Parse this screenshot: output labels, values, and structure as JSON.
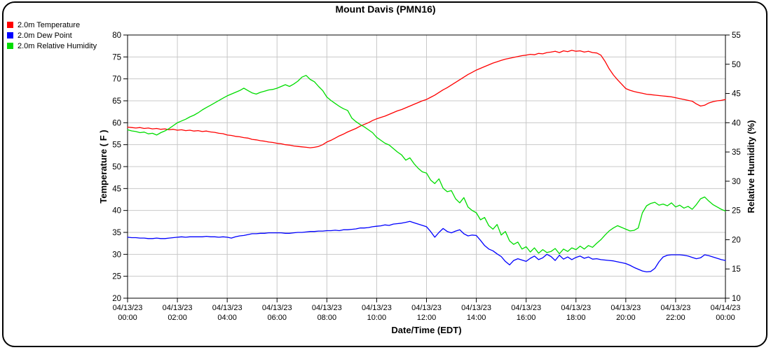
{
  "title": "Mount Davis (PMN16)",
  "legend": {
    "position": "top-left",
    "items": [
      "2.0m Temperature",
      "2.0m Dew Point",
      "2.0m Relative Humidity"
    ]
  },
  "colors": {
    "background": "#ffffff",
    "frame_border": "#000000",
    "axis": "#000000",
    "grid": "#c8c8c8"
  },
  "chart_data": {
    "type": "line",
    "title": "Mount Davis (PMN16)",
    "grid": true,
    "grid_color": "#c8c8c8",
    "x_axis": {
      "label": "Date/Time (EDT)",
      "start_hour": 0,
      "end_hour": 24,
      "tick_interval_hours": 2,
      "tick_labels": [
        {
          "date": "04/13/23",
          "time": "00:00"
        },
        {
          "date": "04/13/23",
          "time": "02:00"
        },
        {
          "date": "04/13/23",
          "time": "04:00"
        },
        {
          "date": "04/13/23",
          "time": "06:00"
        },
        {
          "date": "04/13/23",
          "time": "08:00"
        },
        {
          "date": "04/13/23",
          "time": "10:00"
        },
        {
          "date": "04/13/23",
          "time": "12:00"
        },
        {
          "date": "04/13/23",
          "time": "14:00"
        },
        {
          "date": "04/13/23",
          "time": "16:00"
        },
        {
          "date": "04/13/23",
          "time": "18:00"
        },
        {
          "date": "04/13/23",
          "time": "20:00"
        },
        {
          "date": "04/13/23",
          "time": "22:00"
        },
        {
          "date": "04/14/23",
          "time": "00:00"
        }
      ]
    },
    "y_left": {
      "label": "Temperature ( F )",
      "min": 20,
      "max": 80,
      "tick_step": 5,
      "ticks": [
        80,
        75,
        70,
        65,
        60,
        55,
        50,
        45,
        40,
        35,
        30,
        25,
        20
      ]
    },
    "y_right": {
      "label": "Relative Humidity (%)",
      "min": 10,
      "max": 55,
      "tick_step": 5,
      "ticks": [
        55,
        50,
        45,
        40,
        35,
        30,
        25,
        20,
        15,
        10
      ]
    },
    "series": [
      {
        "name": "2.0m Temperature",
        "color": "#ff0000",
        "axis": "left",
        "x_start_hour": 0,
        "x_end_hour": 24,
        "values": [
          59.0,
          58.9,
          58.8,
          58.9,
          58.7,
          58.8,
          58.6,
          58.7,
          58.5,
          58.6,
          58.4,
          58.5,
          58.3,
          58.4,
          58.2,
          58.3,
          58.1,
          58.2,
          58.0,
          58.1,
          57.9,
          57.8,
          57.6,
          57.5,
          57.2,
          57.1,
          56.9,
          56.8,
          56.6,
          56.5,
          56.2,
          56.1,
          55.9,
          55.8,
          55.6,
          55.5,
          55.3,
          55.2,
          55.0,
          54.9,
          54.7,
          54.6,
          54.5,
          54.4,
          54.3,
          54.4,
          54.6,
          55.0,
          55.6,
          56.0,
          56.5,
          57.0,
          57.4,
          57.9,
          58.3,
          58.7,
          59.2,
          59.6,
          60.0,
          60.5,
          60.9,
          61.2,
          61.5,
          61.9,
          62.3,
          62.7,
          63.0,
          63.4,
          63.8,
          64.2,
          64.6,
          65.0,
          65.3,
          65.8,
          66.3,
          66.9,
          67.5,
          68.0,
          68.6,
          69.2,
          69.8,
          70.4,
          71.0,
          71.5,
          72.0,
          72.4,
          72.8,
          73.2,
          73.6,
          73.9,
          74.2,
          74.5,
          74.7,
          74.9,
          75.1,
          75.3,
          75.4,
          75.6,
          75.5,
          75.8,
          75.7,
          76.0,
          76.1,
          76.3,
          76.0,
          76.4,
          76.2,
          76.5,
          76.3,
          76.4,
          76.1,
          76.3,
          76.0,
          75.9,
          75.4,
          74.0,
          72.3,
          70.9,
          69.8,
          68.8,
          67.8,
          67.4,
          67.1,
          66.9,
          66.7,
          66.5,
          66.4,
          66.3,
          66.2,
          66.1,
          66.0,
          65.9,
          65.7,
          65.5,
          65.3,
          65.1,
          64.9,
          64.3,
          63.8,
          64.0,
          64.5,
          64.8,
          65.0,
          65.1,
          65.3
        ]
      },
      {
        "name": "2.0m Dew Point",
        "color": "#0000ff",
        "axis": "left",
        "x_start_hour": 0,
        "x_end_hour": 24,
        "values": [
          33.9,
          33.8,
          33.8,
          33.7,
          33.7,
          33.6,
          33.6,
          33.7,
          33.6,
          33.6,
          33.7,
          33.8,
          33.9,
          34.0,
          33.9,
          34.0,
          34.0,
          34.0,
          34.0,
          34.1,
          34.0,
          34.0,
          33.9,
          34.0,
          33.9,
          33.7,
          34.0,
          34.2,
          34.3,
          34.5,
          34.7,
          34.7,
          34.8,
          34.8,
          34.9,
          34.9,
          34.9,
          34.9,
          34.8,
          34.8,
          34.9,
          35.0,
          35.0,
          35.1,
          35.2,
          35.2,
          35.3,
          35.3,
          35.4,
          35.4,
          35.5,
          35.4,
          35.6,
          35.6,
          35.7,
          35.8,
          36.0,
          36.0,
          36.1,
          36.3,
          36.4,
          36.5,
          36.7,
          36.6,
          36.9,
          37.0,
          37.1,
          37.3,
          37.5,
          37.2,
          36.9,
          36.6,
          36.3,
          35.2,
          33.9,
          35.0,
          35.9,
          35.2,
          34.9,
          35.3,
          35.6,
          34.7,
          34.2,
          34.4,
          34.3,
          33.2,
          32.0,
          31.2,
          30.8,
          30.1,
          29.5,
          28.4,
          27.6,
          28.6,
          29.0,
          28.7,
          28.4,
          29.1,
          29.6,
          28.8,
          29.2,
          30.0,
          29.5,
          28.6,
          29.8,
          28.9,
          29.4,
          28.8,
          29.3,
          29.6,
          29.1,
          29.4,
          28.9,
          29.0,
          28.8,
          28.7,
          28.6,
          28.5,
          28.3,
          28.1,
          27.9,
          27.5,
          27.0,
          26.6,
          26.2,
          26.0,
          26.1,
          26.8,
          28.3,
          29.4,
          29.8,
          29.9,
          29.9,
          29.9,
          29.8,
          29.6,
          29.3,
          29.0,
          29.2,
          29.9,
          29.7,
          29.4,
          29.1,
          28.8,
          28.6
        ]
      },
      {
        "name": "2.0m Relative Humidity",
        "color": "#00dd00",
        "axis": "right",
        "x_start_hour": 0,
        "x_end_hour": 24,
        "values": [
          38.8,
          38.6,
          38.5,
          38.3,
          38.4,
          38.1,
          38.2,
          37.9,
          38.3,
          38.6,
          39.0,
          39.5,
          40.0,
          40.3,
          40.6,
          41.0,
          41.3,
          41.7,
          42.2,
          42.6,
          43.0,
          43.4,
          43.8,
          44.2,
          44.6,
          44.9,
          45.2,
          45.5,
          45.9,
          45.5,
          45.1,
          44.9,
          45.2,
          45.4,
          45.6,
          45.7,
          45.9,
          46.2,
          46.5,
          46.2,
          46.6,
          47.1,
          47.8,
          48.1,
          47.4,
          47.0,
          46.2,
          45.5,
          44.4,
          43.8,
          43.3,
          42.8,
          42.4,
          42.1,
          40.8,
          40.2,
          39.7,
          39.3,
          38.8,
          38.3,
          37.5,
          37.0,
          36.5,
          36.2,
          35.6,
          35.0,
          34.5,
          33.6,
          34.0,
          33.0,
          32.2,
          31.6,
          31.4,
          30.2,
          29.6,
          30.4,
          28.8,
          28.2,
          28.4,
          27.0,
          26.3,
          27.2,
          25.6,
          25.0,
          24.6,
          23.4,
          23.8,
          22.4,
          21.8,
          22.6,
          20.8,
          21.4,
          19.8,
          19.2,
          19.6,
          18.4,
          18.8,
          17.9,
          18.6,
          17.7,
          18.3,
          17.8,
          18.0,
          18.5,
          17.6,
          18.4,
          18.0,
          18.6,
          18.3,
          18.9,
          18.4,
          19.0,
          18.7,
          19.4,
          20.0,
          20.8,
          21.5,
          22.0,
          22.4,
          22.1,
          21.8,
          21.5,
          21.6,
          22.0,
          24.6,
          25.8,
          26.2,
          26.4,
          25.9,
          26.1,
          25.8,
          26.3,
          25.6,
          25.9,
          25.4,
          25.7,
          25.2,
          26.0,
          27.0,
          27.3,
          26.6,
          26.0,
          25.6,
          25.2,
          24.9
        ]
      }
    ]
  }
}
